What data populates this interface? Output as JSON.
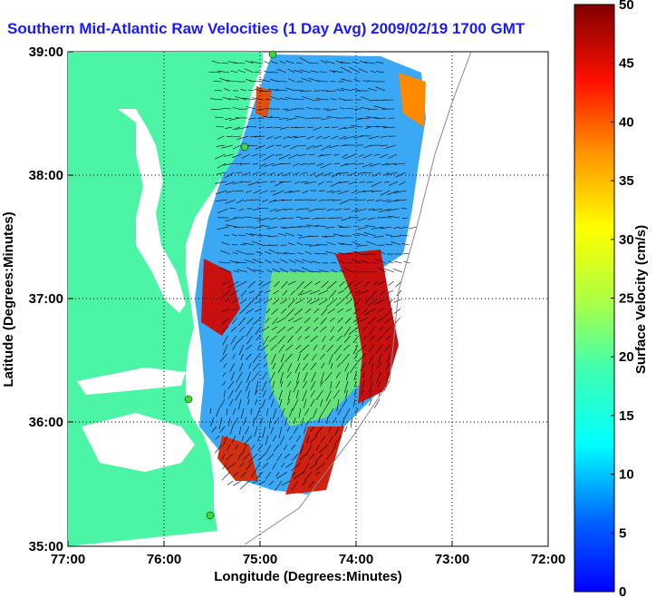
{
  "title": "Southern Mid-Atlantic Raw Velocities (1 Day Avg) 2009/02/19 1700 GMT",
  "xaxis": {
    "label": "Longitude (Degrees:Minutes)",
    "ticks": [
      "77:00",
      "76:00",
      "75:00",
      "74:00",
      "73:00",
      "72:00"
    ],
    "lon_range": [
      -77,
      -72
    ]
  },
  "yaxis": {
    "label": "Latitude (Degrees:Minutes)",
    "ticks": [
      "39:00",
      "38:00",
      "37:00",
      "36:00",
      "35:00"
    ],
    "lat_range": [
      35,
      39
    ]
  },
  "colorbar": {
    "label": "Surface Velocity (cm/s)",
    "ticks": [
      "50",
      "45",
      "40",
      "35",
      "30",
      "25",
      "20",
      "15",
      "10",
      "5",
      "0"
    ],
    "range": [
      0,
      50
    ]
  },
  "colors": {
    "land": "#4cf5a6",
    "water": "#ffffff",
    "title": "#1a1aff",
    "site_marker": "#3cd83c"
  },
  "grid": true
}
